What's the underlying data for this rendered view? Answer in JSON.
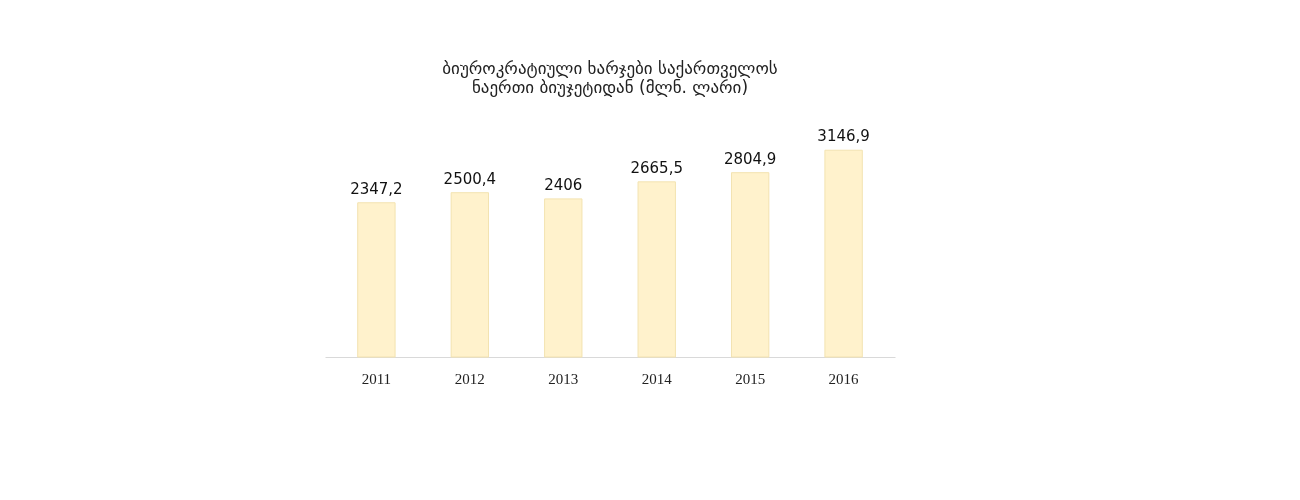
{
  "chart_data": {
    "type": "bar",
    "title": [
      "ბიუროკრატიული ხარჯები საქართველოს",
      "ნაერთი ბიუჯეტიდან (მლნ. ლარი)"
    ],
    "categories": [
      "2011",
      "2012",
      "2013",
      "2014",
      "2015",
      "2016"
    ],
    "values": [
      2347.2,
      2500.4,
      2406,
      2665.5,
      2804.9,
      3146.9
    ],
    "value_labels": [
      "2347,2",
      "2500,4",
      "2406",
      "2665,5",
      "2804,9",
      "3146,9"
    ],
    "color": "#fff2cc",
    "grid": false,
    "tick_labels": "x"
  }
}
